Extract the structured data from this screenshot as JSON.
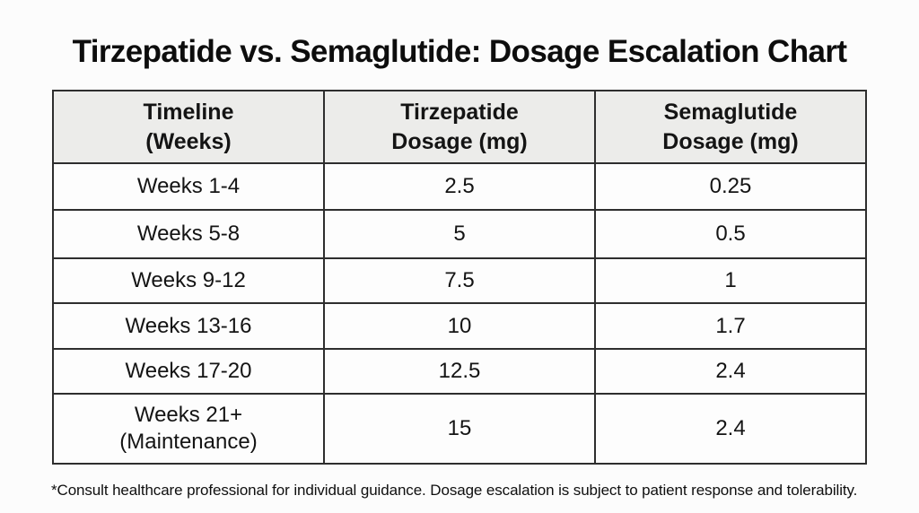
{
  "page": {
    "title": "Tirzepatide vs. Semaglutide: Dosage Escalation Chart",
    "footnote": "*Consult healthcare professional for individual guidance. Dosage escalation is subject to patient response and tolerability."
  },
  "table": {
    "headers": [
      "Timeline\n(Weeks)",
      "Tirzepatide\nDosage (mg)",
      "Semaglutide\nDosage (mg)"
    ],
    "rows": [
      [
        "Weeks 1-4",
        "2.5",
        "0.25"
      ],
      [
        "Weeks 5-8",
        "5",
        "0.5"
      ],
      [
        "Weeks 9-12",
        "7.5",
        "1"
      ],
      [
        "Weeks 13-16",
        "10",
        "1.7"
      ],
      [
        "Weeks 17-20",
        "12.5",
        "2.4"
      ],
      [
        "Weeks 21+\n(Maintenance)",
        "15",
        "2.4"
      ]
    ]
  },
  "chart_data": {
    "type": "table",
    "title": "Tirzepatide vs. Semaglutide: Dosage Escalation Chart",
    "columns": [
      "Timeline (Weeks)",
      "Tirzepatide Dosage (mg)",
      "Semaglutide Dosage (mg)"
    ],
    "rows": [
      [
        "Weeks 1-4",
        2.5,
        0.25
      ],
      [
        "Weeks 5-8",
        5,
        0.5
      ],
      [
        "Weeks 9-12",
        7.5,
        1
      ],
      [
        "Weeks 13-16",
        10,
        1.7
      ],
      [
        "Weeks 17-20",
        12.5,
        2.4
      ],
      [
        "Weeks 21+ (Maintenance)",
        15,
        2.4
      ]
    ],
    "footnote": "*Consult healthcare professional for individual guidance. Dosage escalation is subject to patient response and tolerability.",
    "layout": {
      "header_bg": "#ececea",
      "grid": "on",
      "units": "mg"
    }
  },
  "colors": {
    "header_bg": "#ececea",
    "border": "#2e2e2e",
    "text": "#141414",
    "background": "#fcfcfc"
  }
}
